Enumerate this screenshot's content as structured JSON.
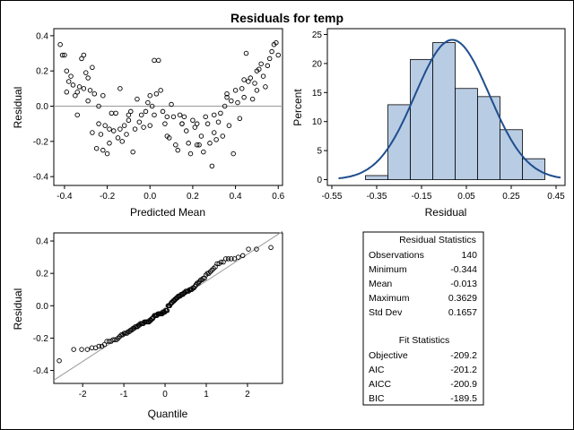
{
  "title": "Residuals for temp",
  "colors": {
    "hist_fill": "#b8cce4",
    "curve": "#1f4e8c",
    "ref_line": "#999999",
    "marker": "#000000"
  },
  "chart_data": [
    {
      "type": "scatter",
      "xlabel": "Predicted Mean",
      "ylabel": "Residual",
      "xlim": [
        -0.45,
        0.62
      ],
      "ylim": [
        -0.45,
        0.44
      ],
      "xticks": [
        "-0.4",
        "-0.2",
        "0.0",
        "0.2",
        "0.4",
        "0.6"
      ],
      "yticks": [
        "0.4",
        "0.2",
        "0.0",
        "-0.2",
        "-0.4"
      ],
      "xtick_values": [
        -0.4,
        -0.2,
        0.0,
        0.2,
        0.4,
        0.6
      ],
      "ytick_values": [
        0.4,
        0.2,
        0.0,
        -0.2,
        -0.4
      ],
      "reference_line_y": 0,
      "points": [
        [
          -0.42,
          0.35
        ],
        [
          -0.41,
          0.29
        ],
        [
          -0.4,
          0.29
        ],
        [
          -0.39,
          0.2
        ],
        [
          -0.38,
          0.14
        ],
        [
          -0.39,
          0.08
        ],
        [
          -0.37,
          0.17
        ],
        [
          -0.36,
          0.12
        ],
        [
          -0.35,
          0.06
        ],
        [
          -0.34,
          0.08
        ],
        [
          -0.33,
          0.11
        ],
        [
          -0.34,
          -0.05
        ],
        [
          -0.32,
          0.27
        ],
        [
          -0.31,
          0.29
        ],
        [
          -0.31,
          0.1
        ],
        [
          -0.3,
          0.19
        ],
        [
          -0.29,
          0.16
        ],
        [
          -0.29,
          0.03
        ],
        [
          -0.28,
          0.09
        ],
        [
          -0.27,
          -0.15
        ],
        [
          -0.26,
          0.07
        ],
        [
          -0.25,
          -0.24
        ],
        [
          -0.24,
          0.0
        ],
        [
          -0.24,
          -0.1
        ],
        [
          -0.23,
          -0.16
        ],
        [
          -0.22,
          -0.25
        ],
        [
          -0.21,
          -0.11
        ],
        [
          -0.2,
          -0.27
        ],
        [
          -0.19,
          -0.13
        ],
        [
          -0.19,
          -0.21
        ],
        [
          -0.18,
          -0.04
        ],
        [
          -0.17,
          -0.14
        ],
        [
          -0.16,
          -0.04
        ],
        [
          -0.15,
          -0.18
        ],
        [
          -0.14,
          -0.13
        ],
        [
          -0.14,
          0.1
        ],
        [
          -0.13,
          -0.2
        ],
        [
          -0.12,
          -0.11
        ],
        [
          -0.11,
          -0.16
        ],
        [
          -0.1,
          -0.08
        ],
        [
          -0.09,
          -0.03
        ],
        [
          -0.08,
          -0.26
        ],
        [
          -0.07,
          -0.13
        ],
        [
          -0.06,
          0.04
        ],
        [
          -0.05,
          -0.09
        ],
        [
          -0.04,
          -0.05
        ],
        [
          -0.03,
          -0.12
        ],
        [
          -0.02,
          -0.03
        ],
        [
          -0.01,
          0.02
        ],
        [
          0.0,
          -0.11
        ],
        [
          0.01,
          0.0
        ],
        [
          0.02,
          -0.05
        ],
        [
          0.02,
          0.26
        ],
        [
          0.03,
          0.07
        ],
        [
          0.04,
          0.26
        ],
        [
          0.05,
          0.09
        ],
        [
          0.06,
          -0.03
        ],
        [
          0.07,
          -0.1
        ],
        [
          0.08,
          -0.17
        ],
        [
          0.09,
          -0.18
        ],
        [
          0.1,
          0.01
        ],
        [
          0.11,
          -0.06
        ],
        [
          0.12,
          -0.22
        ],
        [
          0.13,
          -0.25
        ],
        [
          0.14,
          -0.05
        ],
        [
          0.15,
          -0.1
        ],
        [
          0.16,
          -0.06
        ],
        [
          0.17,
          -0.14
        ],
        [
          0.18,
          -0.21
        ],
        [
          0.19,
          -0.27
        ],
        [
          0.2,
          -0.08
        ],
        [
          0.21,
          -0.12
        ],
        [
          0.22,
          -0.22
        ],
        [
          0.23,
          -0.22
        ],
        [
          0.24,
          -0.17
        ],
        [
          0.25,
          -0.26
        ],
        [
          0.26,
          -0.06
        ],
        [
          0.27,
          -0.1
        ],
        [
          0.28,
          -0.21
        ],
        [
          0.29,
          -0.34
        ],
        [
          0.3,
          -0.15
        ],
        [
          0.31,
          -0.19
        ],
        [
          0.32,
          -0.09
        ],
        [
          0.33,
          -0.04
        ],
        [
          0.34,
          -0.17
        ],
        [
          0.35,
          0.0
        ],
        [
          0.36,
          0.07
        ],
        [
          0.37,
          -0.11
        ],
        [
          0.38,
          0.03
        ],
        [
          0.39,
          -0.27
        ],
        [
          0.4,
          0.09
        ],
        [
          0.41,
          0.02
        ],
        [
          0.42,
          -0.07
        ],
        [
          0.43,
          0.1
        ],
        [
          0.44,
          0.05
        ],
        [
          0.45,
          0.3
        ],
        [
          0.46,
          0.14
        ],
        [
          0.47,
          0.16
        ],
        [
          0.48,
          0.04
        ],
        [
          0.49,
          0.13
        ],
        [
          0.5,
          0.09
        ],
        [
          0.51,
          0.21
        ],
        [
          0.52,
          0.24
        ],
        [
          0.53,
          0.17
        ],
        [
          0.54,
          0.11
        ],
        [
          0.55,
          0.23
        ],
        [
          0.56,
          0.27
        ],
        [
          0.57,
          0.31
        ],
        [
          0.58,
          0.35
        ],
        [
          0.59,
          0.36
        ],
        [
          0.6,
          0.29
        ],
        [
          -0.27,
          0.22
        ],
        [
          -0.22,
          0.06
        ],
        [
          -0.1,
          -0.05
        ],
        [
          0.0,
          0.06
        ],
        [
          0.08,
          -0.06
        ],
        [
          0.15,
          -0.1
        ],
        [
          0.22,
          -0.1
        ],
        [
          0.3,
          -0.05
        ],
        [
          0.36,
          0.05
        ],
        [
          0.44,
          0.15
        ],
        [
          0.5,
          0.2
        ]
      ]
    },
    {
      "type": "bar",
      "subtype": "histogram",
      "xlabel": "Residual",
      "ylabel": "Percent",
      "xlim": [
        -0.57,
        0.49
      ],
      "ylim": [
        -1,
        26
      ],
      "xticks": [
        "-0.55",
        "-0.35",
        "-0.15",
        "0.05",
        "0.25",
        "0.45"
      ],
      "yticks": [
        "25",
        "20",
        "15",
        "10",
        "5",
        "0"
      ],
      "xtick_values": [
        -0.55,
        -0.35,
        -0.15,
        0.05,
        0.25,
        0.45
      ],
      "ytick_values": [
        25,
        20,
        15,
        10,
        5,
        0
      ],
      "bin_width": 0.1,
      "bin_centers": [
        -0.35,
        -0.25,
        -0.15,
        -0.05,
        0.05,
        0.15,
        0.25,
        0.35
      ],
      "values": [
        0.7,
        12.9,
        20.7,
        23.6,
        15.7,
        14.3,
        8.6,
        3.6
      ],
      "normal_curve": {
        "mean": -0.013,
        "sd": 0.1657
      }
    },
    {
      "type": "scatter",
      "subtype": "qq",
      "xlabel": "Quantile",
      "ylabel": "Residual",
      "xlim": [
        -2.7,
        2.85
      ],
      "ylim": [
        -0.48,
        0.45
      ],
      "xticks": [
        "-2",
        "-1",
        "0",
        "1",
        "2"
      ],
      "yticks": [
        "0.4",
        "0.2",
        "0.0",
        "-0.2",
        "-0.4"
      ],
      "xtick_values": [
        -2,
        -1,
        0,
        1,
        2
      ],
      "ytick_values": [
        0.4,
        0.2,
        0.0,
        -0.2,
        -0.4
      ],
      "reference_line": {
        "intercept": -0.013,
        "slope": 0.1657
      }
    }
  ],
  "stats_table": {
    "residual_header": "Residual Statistics",
    "residual_rows": [
      {
        "label": "Observations",
        "value": "140"
      },
      {
        "label": "Minimum",
        "value": "-0.344"
      },
      {
        "label": "Mean",
        "value": "-0.013"
      },
      {
        "label": "Maximum",
        "value": "0.3629"
      },
      {
        "label": "Std Dev",
        "value": "0.1657"
      }
    ],
    "fit_header": "Fit Statistics",
    "fit_rows": [
      {
        "label": "Objective",
        "value": "-209.2"
      },
      {
        "label": "AIC",
        "value": "-201.2"
      },
      {
        "label": "AICC",
        "value": "-200.9"
      },
      {
        "label": "BIC",
        "value": "-189.5"
      }
    ]
  }
}
